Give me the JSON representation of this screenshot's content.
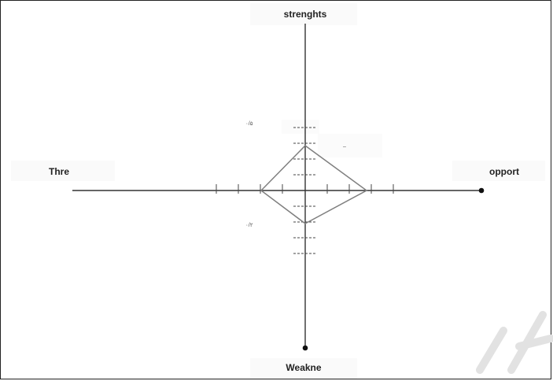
{
  "labels": {
    "top": "strenghts",
    "bottom": "Weakne",
    "left": "Thre",
    "right": "opport"
  },
  "annotations": {
    "upper": "٠/۵",
    "lower": "٠/٢",
    "mark": "–"
  },
  "colors": {
    "axis": "#333333",
    "diamond": "#7f7f7f",
    "tick": "#444444",
    "watermark": "#d9d9d9"
  }
}
